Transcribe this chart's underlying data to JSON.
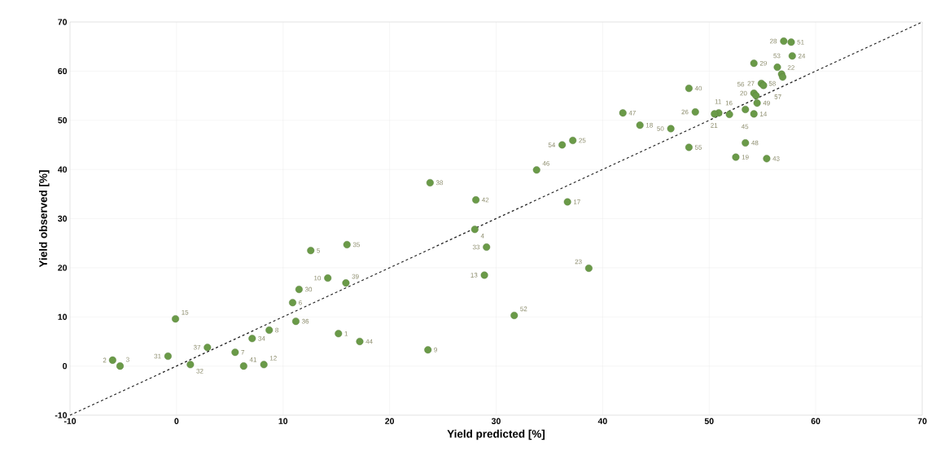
{
  "chart_data": {
    "type": "scatter",
    "xlabel": "Yield predicted [%]",
    "ylabel": "Yield observed [%]",
    "xlim": [
      -10,
      70
    ],
    "ylim": [
      -10,
      70
    ],
    "xticks": [
      -10,
      0,
      10,
      20,
      30,
      40,
      50,
      60,
      70
    ],
    "yticks": [
      -10,
      0,
      10,
      20,
      30,
      40,
      50,
      60,
      70
    ],
    "grid": true,
    "series": [
      {
        "type": "scatter",
        "marker": "circle",
        "color": "#6a9a48",
        "x": [
          15.2,
          -6.0,
          -5.3,
          28.0,
          12.6,
          10.9,
          5.5,
          8.7,
          23.6,
          14.2,
          50.9,
          8.2,
          28.9,
          54.2,
          -0.1,
          51.9,
          36.7,
          43.5,
          52.5,
          54.2,
          50.5,
          56.8,
          38.7,
          57.8,
          37.2,
          48.7,
          54.9,
          57.0,
          54.2,
          11.5,
          -0.8,
          1.3,
          29.1,
          7.1,
          16.0,
          11.2,
          2.9,
          23.8,
          15.9,
          48.1,
          6.3,
          28.1,
          55.4,
          17.2,
          53.4,
          33.8,
          41.9,
          53.4,
          54.5,
          46.4,
          57.7,
          31.7,
          56.4,
          36.2,
          48.1,
          54.4,
          55.1,
          56.9
        ],
        "values": [
          6.6,
          1.2,
          0.0,
          27.8,
          23.5,
          12.9,
          2.8,
          7.3,
          3.3,
          17.9,
          51.5,
          0.3,
          18.5,
          51.3,
          9.6,
          51.2,
          33.4,
          49.0,
          42.5,
          55.5,
          51.3,
          59.4,
          19.9,
          63.1,
          45.9,
          51.7,
          57.5,
          66.1,
          61.6,
          15.6,
          2.0,
          0.3,
          24.2,
          5.6,
          24.7,
          9.1,
          3.8,
          37.3,
          16.9,
          56.5,
          0.0,
          33.8,
          42.2,
          5.0,
          52.2,
          39.9,
          51.5,
          45.4,
          53.5,
          48.3,
          65.9,
          10.3,
          60.8,
          45.0,
          44.5,
          55.0,
          57.1,
          58.8
        ]
      },
      {
        "type": "line",
        "marker": "none",
        "color": "#222222",
        "line_style": "dashed",
        "x": [
          -10,
          70
        ],
        "values": [
          -10,
          70
        ]
      }
    ],
    "annotations": [
      {
        "text": "1",
        "x": 15.2,
        "y": 6.6
      },
      {
        "text": "2",
        "x": -6.0,
        "y": 1.2
      },
      {
        "text": "3",
        "x": -5.3,
        "y": 0.0
      },
      {
        "text": "4",
        "x": 28.0,
        "y": 27.8
      },
      {
        "text": "5",
        "x": 12.6,
        "y": 23.5
      },
      {
        "text": "6",
        "x": 10.9,
        "y": 12.9
      },
      {
        "text": "7",
        "x": 5.5,
        "y": 2.8
      },
      {
        "text": "8",
        "x": 8.7,
        "y": 7.3
      },
      {
        "text": "9",
        "x": 23.6,
        "y": 3.3
      },
      {
        "text": "10",
        "x": 14.2,
        "y": 17.9
      },
      {
        "text": "11",
        "x": 50.9,
        "y": 51.5
      },
      {
        "text": "12",
        "x": 8.2,
        "y": 0.3
      },
      {
        "text": "13",
        "x": 28.9,
        "y": 18.5
      },
      {
        "text": "14",
        "x": 54.2,
        "y": 51.3
      },
      {
        "text": "15",
        "x": -0.1,
        "y": 9.6
      },
      {
        "text": "16",
        "x": 51.9,
        "y": 51.2
      },
      {
        "text": "17",
        "x": 36.7,
        "y": 33.4
      },
      {
        "text": "18",
        "x": 43.5,
        "y": 49.0
      },
      {
        "text": "19",
        "x": 52.5,
        "y": 42.5
      },
      {
        "text": "20",
        "x": 54.2,
        "y": 55.5
      },
      {
        "text": "21",
        "x": 50.5,
        "y": 51.3
      },
      {
        "text": "22",
        "x": 56.8,
        "y": 59.4
      },
      {
        "text": "23",
        "x": 38.7,
        "y": 19.9
      },
      {
        "text": "24",
        "x": 57.8,
        "y": 63.1
      },
      {
        "text": "25",
        "x": 37.2,
        "y": 45.9
      },
      {
        "text": "26",
        "x": 48.7,
        "y": 51.7
      },
      {
        "text": "27",
        "x": 54.9,
        "y": 57.5
      },
      {
        "text": "28",
        "x": 57.0,
        "y": 66.1
      },
      {
        "text": "29",
        "x": 54.2,
        "y": 61.6
      },
      {
        "text": "30",
        "x": 11.5,
        "y": 15.6
      },
      {
        "text": "31",
        "x": -0.8,
        "y": 2.0
      },
      {
        "text": "32",
        "x": 1.3,
        "y": 0.3
      },
      {
        "text": "33",
        "x": 29.1,
        "y": 24.2
      },
      {
        "text": "34",
        "x": 7.1,
        "y": 5.6
      },
      {
        "text": "35",
        "x": 16.0,
        "y": 24.7
      },
      {
        "text": "36",
        "x": 11.2,
        "y": 9.1
      },
      {
        "text": "37",
        "x": 2.9,
        "y": 3.8
      },
      {
        "text": "38",
        "x": 23.8,
        "y": 37.3
      },
      {
        "text": "39",
        "x": 15.9,
        "y": 16.9
      },
      {
        "text": "40",
        "x": 48.1,
        "y": 56.5
      },
      {
        "text": "41",
        "x": 6.3,
        "y": 0.0
      },
      {
        "text": "42",
        "x": 28.1,
        "y": 33.8
      },
      {
        "text": "43",
        "x": 55.4,
        "y": 42.2
      },
      {
        "text": "44",
        "x": 17.2,
        "y": 5.0
      },
      {
        "text": "45",
        "x": 53.4,
        "y": 52.2
      },
      {
        "text": "46",
        "x": 33.8,
        "y": 39.9
      },
      {
        "text": "47",
        "x": 41.9,
        "y": 51.5
      },
      {
        "text": "48",
        "x": 53.4,
        "y": 45.4
      },
      {
        "text": "49",
        "x": 54.5,
        "y": 53.5
      },
      {
        "text": "50",
        "x": 46.4,
        "y": 48.3
      },
      {
        "text": "51",
        "x": 57.7,
        "y": 65.9
      },
      {
        "text": "52",
        "x": 31.7,
        "y": 10.3
      },
      {
        "text": "53",
        "x": 56.4,
        "y": 60.8
      },
      {
        "text": "54",
        "x": 36.2,
        "y": 45.0
      },
      {
        "text": "55",
        "x": 48.1,
        "y": 44.5
      },
      {
        "text": "56",
        "x": 54.4,
        "y": 55.0
      },
      {
        "text": "57",
        "x": 55.1,
        "y": 57.1
      },
      {
        "text": "58",
        "x": 56.9,
        "y": 58.8
      }
    ]
  }
}
